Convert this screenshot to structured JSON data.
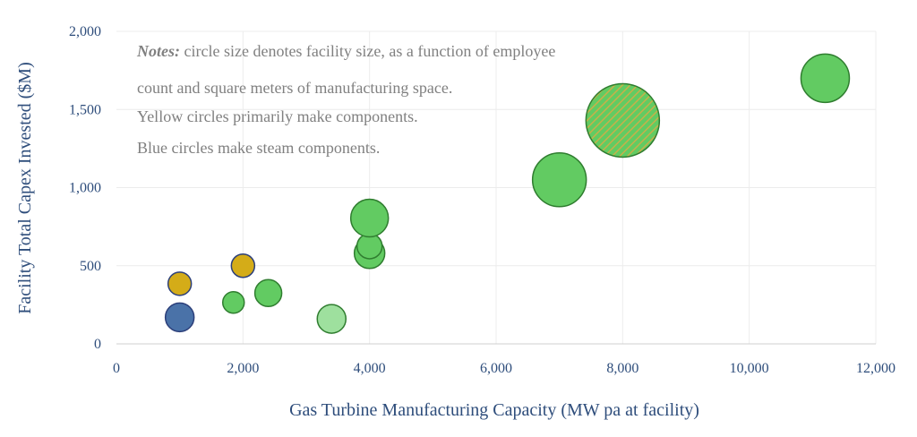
{
  "chart_data": {
    "type": "scatter",
    "xlabel": "Gas Turbine Manufacturing Capacity (MW pa at facility)",
    "ylabel": "Facility Total Capex Invested ($M)",
    "xlim": [
      0,
      12000
    ],
    "ylim": [
      0,
      2000
    ],
    "xticks": [
      0,
      2000,
      4000,
      6000,
      8000,
      10000,
      12000
    ],
    "yticks": [
      0,
      500,
      1000,
      1500,
      2000
    ],
    "xtick_labels": [
      "0",
      "2,000",
      "4,000",
      "6,000",
      "8,000",
      "10,000",
      "12,000"
    ],
    "ytick_labels": [
      "0",
      "500",
      "1,000",
      "1,500",
      "2,000"
    ],
    "grid": true,
    "notes": {
      "bold_label": "Notes:",
      "line1": " circle size denotes facility size, as a function of employee",
      "line2": "count and square meters of manufacturing space.",
      "line3": "Yellow circles primarily make components.",
      "line4": "Blue circles make steam components."
    },
    "colors": {
      "green": "#62cb62",
      "light_green": "#9ee09e",
      "yellow": "#d4ac18",
      "blue": "#4a72a8",
      "green_edge": "#2f7d2f",
      "navy_edge": "#2c3f7a",
      "hatch": "#c7b04a"
    },
    "points": [
      {
        "x": 1000,
        "y": 170,
        "size": 16,
        "category": "blue"
      },
      {
        "x": 1000,
        "y": 385,
        "size": 13,
        "category": "yellow"
      },
      {
        "x": 2000,
        "y": 500,
        "size": 13,
        "category": "yellow"
      },
      {
        "x": 1850,
        "y": 265,
        "size": 12,
        "category": "green"
      },
      {
        "x": 2400,
        "y": 325,
        "size": 15,
        "category": "green"
      },
      {
        "x": 3400,
        "y": 160,
        "size": 16,
        "category": "light_green"
      },
      {
        "x": 4000,
        "y": 580,
        "size": 17,
        "category": "green"
      },
      {
        "x": 4000,
        "y": 625,
        "size": 14,
        "category": "green"
      },
      {
        "x": 4000,
        "y": 805,
        "size": 21,
        "category": "green"
      },
      {
        "x": 7000,
        "y": 1050,
        "size": 30,
        "category": "green"
      },
      {
        "x": 8000,
        "y": 1430,
        "size": 41,
        "category": "hatched"
      },
      {
        "x": 11200,
        "y": 1700,
        "size": 27,
        "category": "green"
      }
    ]
  }
}
